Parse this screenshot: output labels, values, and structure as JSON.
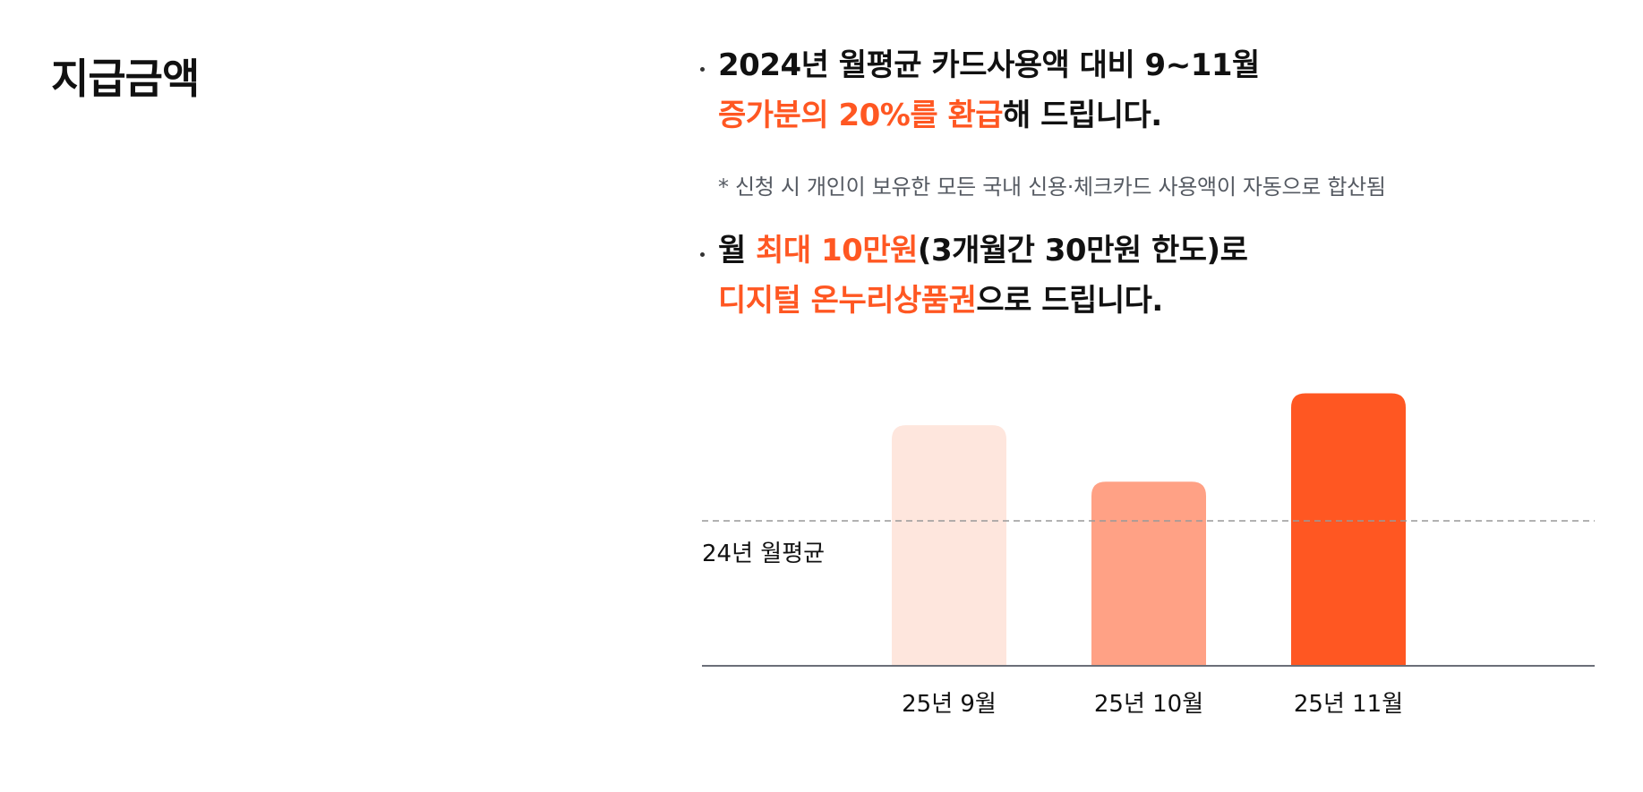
{
  "section": {
    "title": "지급금액"
  },
  "bullets": [
    {
      "line1": {
        "text": "2024년 월평균 카드사용액 대비 9~11월"
      },
      "line2": {
        "highlight": "증가분의 20%를 환급",
        "rest": "해 드립니다."
      }
    },
    {
      "line1": {
        "prefix": "월 ",
        "highlight": "최대 10만원",
        "rest": "(3개월간 30만원 한도)로"
      },
      "line2": {
        "highlight": "디지털 온누리상품권",
        "rest": "으로 드립니다."
      }
    }
  ],
  "note": "* 신청 시 개인이 보유한 모든 국내 신용·체크카드 사용액이 자동으로 합산됨",
  "colors": {
    "accent": "#ff5722",
    "bar_light": "#fee6dd",
    "bar_mid": "#ffa185",
    "bar_strong": "#ff5722",
    "axis": "#6b6f78",
    "reference_line": "#999999"
  },
  "chart_data": {
    "type": "bar",
    "categories": [
      "25년 9월",
      "25년 10월",
      "25년 11월"
    ],
    "values": [
      1.66,
      1.27,
      1.88
    ],
    "bar_colors": [
      "#fee6dd",
      "#ffa185",
      "#ff5722"
    ],
    "reference_line": {
      "label": "24년 월평균",
      "value": 1.0,
      "style": "dashed"
    },
    "xlabel": "",
    "ylabel": "",
    "ylim": [
      0,
      2.0
    ],
    "grid": false,
    "legend": "none",
    "note": "relative values — y axis not printed; 24년 월평균 = 1.0"
  }
}
